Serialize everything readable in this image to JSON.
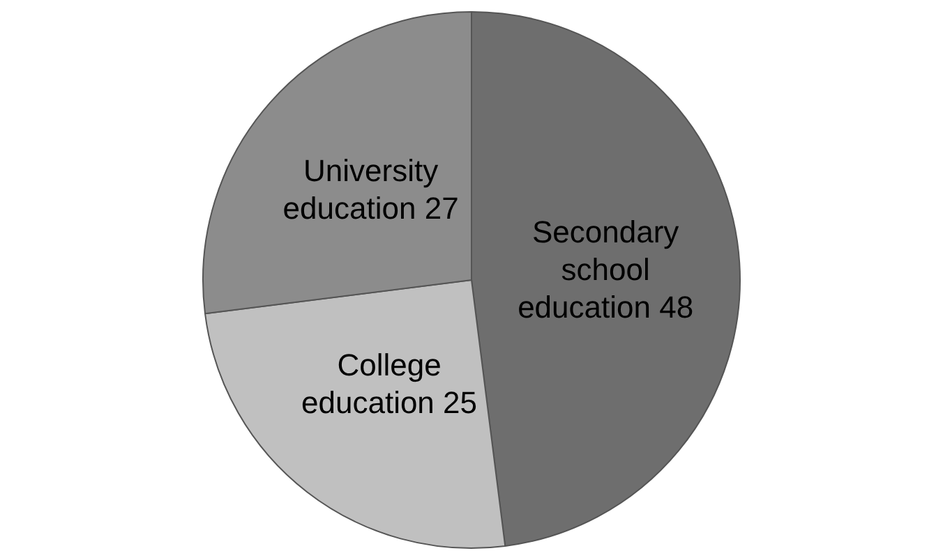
{
  "chart_data": {
    "type": "pie",
    "categories": [
      "Secondary school education",
      "College education",
      "University education"
    ],
    "values": [
      48,
      25,
      27
    ],
    "colors": [
      "#6e6e6e",
      "#c0c0c0",
      "#8c8c8c"
    ],
    "data_labels": true,
    "legend": false
  }
}
